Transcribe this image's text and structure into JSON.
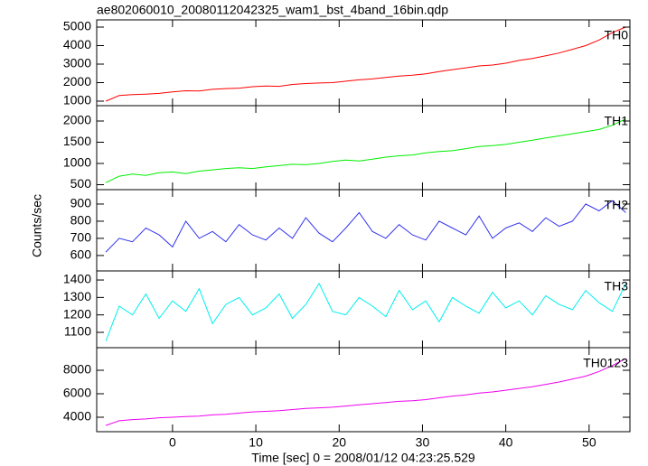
{
  "chart_data": {
    "type": "line",
    "title": "ae802060010_20080112042325_wam1_bst_4band_16bin.qdp",
    "xlabel": "Time [sec] 0 = 2008/01/12 04:23:25.529",
    "ylabel": "Counts/sec",
    "x": [
      -8,
      -6.4,
      -4.8,
      -3.2,
      -1.6,
      0,
      1.6,
      3.2,
      4.8,
      6.4,
      8,
      9.6,
      11.2,
      12.8,
      14.4,
      16,
      17.6,
      19.2,
      20.8,
      22.4,
      24,
      25.6,
      27.2,
      28.8,
      30.4,
      32,
      33.6,
      35.2,
      36.8,
      38.4,
      40,
      41.6,
      43.2,
      44.8,
      46.4,
      48,
      49.6,
      51.2,
      52.8,
      54.4
    ],
    "xlim": [
      -9.1,
      54.9
    ],
    "xticks": [
      0,
      10,
      20,
      30,
      40,
      50
    ],
    "series": [
      {
        "name": "TH0",
        "color": "#ff0000",
        "ylim": [
          756,
          5390
        ],
        "yticks": [
          1000,
          2000,
          3000,
          4000,
          5000
        ],
        "values": [
          1000,
          1300,
          1350,
          1380,
          1420,
          1500,
          1560,
          1550,
          1640,
          1680,
          1700,
          1780,
          1820,
          1800,
          1900,
          1950,
          1980,
          2000,
          2080,
          2150,
          2200,
          2280,
          2350,
          2400,
          2480,
          2600,
          2700,
          2800,
          2900,
          2950,
          3050,
          3200,
          3300,
          3450,
          3600,
          3800,
          4000,
          4300,
          4700,
          5000
        ]
      },
      {
        "name": "TH1",
        "color": "#00ee00",
        "ylim": [
          383,
          2362
        ],
        "yticks": [
          500,
          1000,
          1500,
          2000
        ],
        "values": [
          550,
          700,
          750,
          720,
          780,
          800,
          760,
          820,
          850,
          880,
          900,
          880,
          920,
          950,
          980,
          970,
          1000,
          1050,
          1080,
          1060,
          1100,
          1150,
          1180,
          1200,
          1250,
          1280,
          1300,
          1350,
          1400,
          1420,
          1450,
          1500,
          1550,
          1600,
          1650,
          1700,
          1750,
          1800,
          1900,
          2050
        ]
      },
      {
        "name": "TH2",
        "color": "#3333ee",
        "ylim": [
          510,
          984
        ],
        "yticks": [
          600,
          700,
          800,
          900
        ],
        "values": [
          620,
          700,
          680,
          760,
          720,
          650,
          800,
          700,
          740,
          680,
          780,
          720,
          690,
          760,
          700,
          820,
          730,
          680,
          760,
          850,
          740,
          700,
          780,
          720,
          690,
          800,
          760,
          720,
          830,
          700,
          760,
          790,
          740,
          820,
          770,
          800,
          900,
          860,
          920,
          850
        ]
      },
      {
        "name": "TH3",
        "color": "#00eeee",
        "ylim": [
          1012,
          1452
        ],
        "yticks": [
          1100,
          1200,
          1300,
          1400
        ],
        "values": [
          1050,
          1250,
          1200,
          1320,
          1180,
          1280,
          1220,
          1350,
          1150,
          1260,
          1300,
          1200,
          1240,
          1320,
          1180,
          1260,
          1380,
          1220,
          1200,
          1300,
          1250,
          1190,
          1340,
          1230,
          1280,
          1160,
          1300,
          1250,
          1210,
          1330,
          1240,
          1280,
          1200,
          1310,
          1260,
          1230,
          1340,
          1270,
          1220,
          1380
        ]
      },
      {
        "name": "TH0123",
        "color": "#ee00ee",
        "ylim": [
          2769,
          9923
        ],
        "yticks": [
          4000,
          6000,
          8000
        ],
        "values": [
          3300,
          3700,
          3800,
          3850,
          3950,
          4000,
          4050,
          4100,
          4200,
          4250,
          4350,
          4450,
          4500,
          4550,
          4650,
          4750,
          4800,
          4850,
          4950,
          5050,
          5150,
          5250,
          5350,
          5400,
          5500,
          5650,
          5800,
          5900,
          6050,
          6150,
          6300,
          6450,
          6600,
          6800,
          7000,
          7250,
          7500,
          7900,
          8400,
          9000
        ]
      }
    ]
  }
}
